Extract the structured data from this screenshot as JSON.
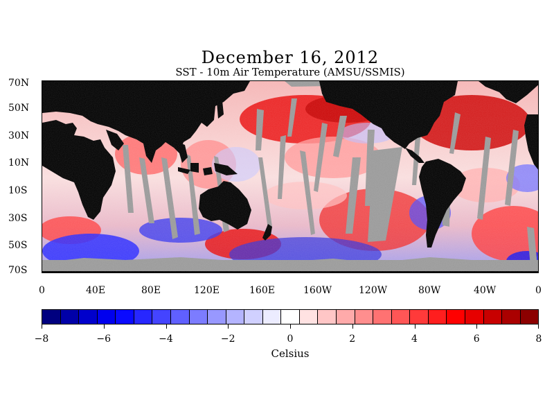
{
  "title": "December 16, 2012",
  "subtitle": "SST - 10m Air Temperature (AMSU/SSMIS)",
  "lat_labels": [
    "70N",
    "50N",
    "30N",
    "10N",
    "10S",
    "30S",
    "50S",
    "70S"
  ],
  "lon_labels": [
    "0",
    "40E",
    "80E",
    "120E",
    "160E",
    "160W",
    "120W",
    "80W",
    "40W",
    "0"
  ],
  "colorbar": {
    "min": -8,
    "max": 8,
    "tick_labels": [
      "−8",
      "−6",
      "−4",
      "−2",
      "0",
      "2",
      "4",
      "6",
      "8"
    ],
    "unit": "Celsius",
    "colors": [
      "#00007f",
      "#0000a8",
      "#0000cc",
      "#0000ee",
      "#0a0aff",
      "#2727ff",
      "#4444ff",
      "#6060ff",
      "#7c7cff",
      "#9898ff",
      "#b4b4ff",
      "#d0d0ff",
      "#ececff",
      "#ffffff",
      "#ffe2e2",
      "#ffc6c6",
      "#ffaaaa",
      "#ff8e8e",
      "#ff7272",
      "#ff5656",
      "#ff3a3a",
      "#ff1e1e",
      "#ff0000",
      "#e60000",
      "#c80000",
      "#aa0000",
      "#8c0000"
    ]
  },
  "map_colors": {
    "land": "#000000",
    "no_data": "#999999"
  }
}
